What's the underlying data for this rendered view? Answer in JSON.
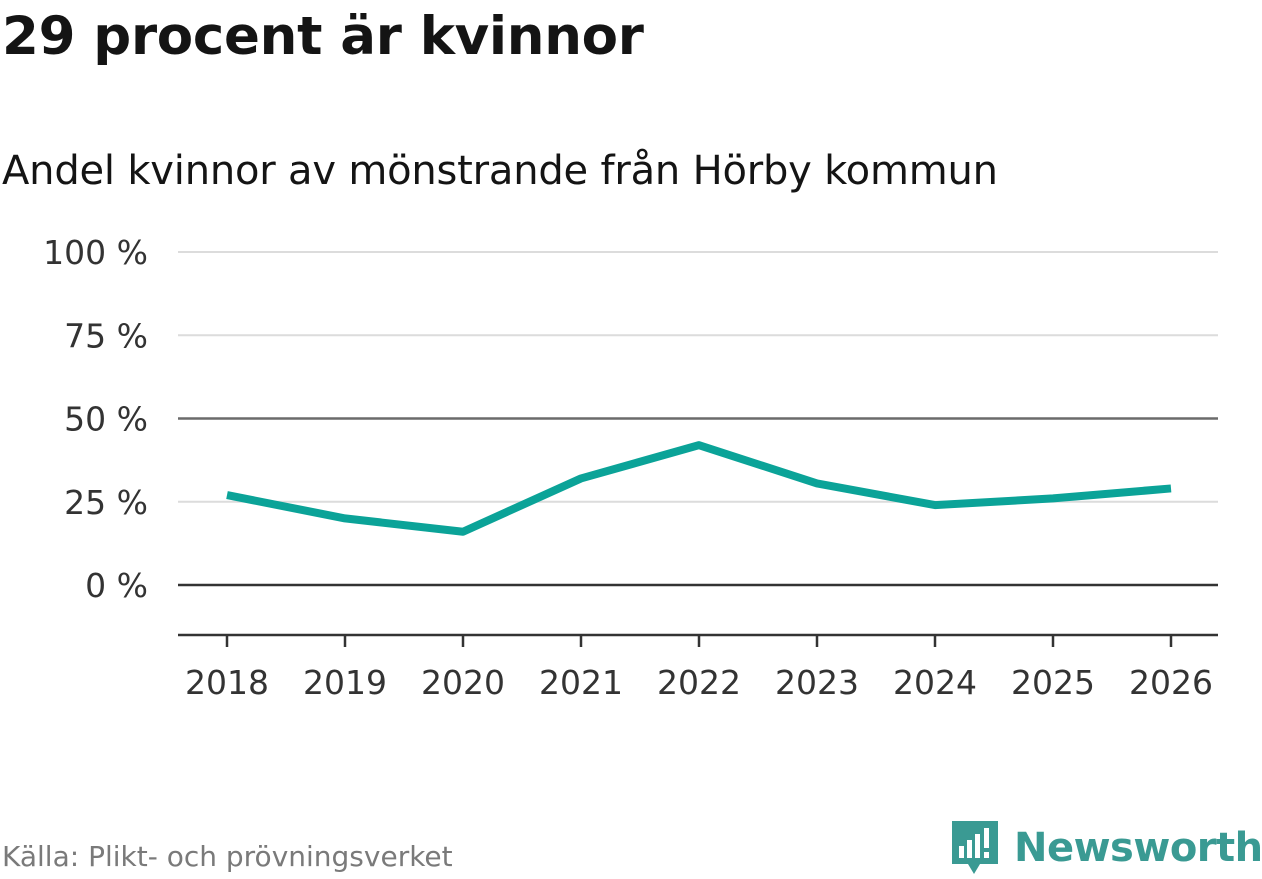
{
  "chart_data": {
    "type": "line",
    "title": "29 procent är kvinnor",
    "subtitle": "Andel kvinnor av mönstrande från Hörby kommun",
    "categories": [
      "2018",
      "2019",
      "2020",
      "2021",
      "2022",
      "2023",
      "2024",
      "2025",
      "2026"
    ],
    "series": [
      {
        "name": "Andel kvinnor",
        "values": [
          27,
          20,
          16,
          32,
          42,
          30.5,
          24,
          26,
          29
        ]
      }
    ],
    "ylim": [
      -15,
      100
    ],
    "yticks": [
      100,
      75,
      50,
      25,
      0
    ],
    "ytick_labels": [
      "100 %",
      "75 %",
      "50 %",
      "25 %",
      "0 %"
    ],
    "xlabel": "",
    "ylabel": "",
    "line_color": "#0ba398",
    "grid": true
  },
  "footer": {
    "source": "Källa: Plikt- och prövningsverket",
    "brand": "Newsworthy",
    "brand_color": "#3a9a93"
  }
}
